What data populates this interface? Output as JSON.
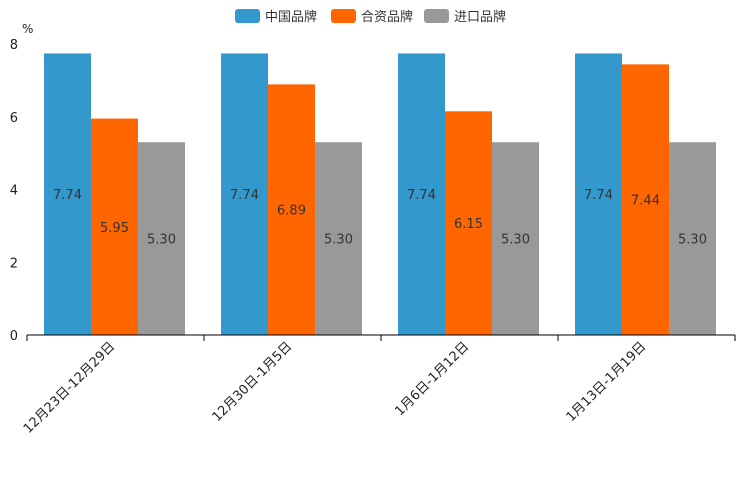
{
  "chart_data": {
    "type": "bar",
    "title": "",
    "ylabel_unit": "%",
    "xlabel": "",
    "ylim": [
      0,
      8
    ],
    "yticks": [
      0,
      2,
      4,
      6,
      8
    ],
    "grid": false,
    "legend_position": "top-center",
    "categories": [
      "12月23日-12月29日",
      "12月30日-1月5日",
      "1月6日-1月12日",
      "1月13日-1月19日"
    ],
    "series": [
      {
        "name": "中国品牌",
        "color": "#3399cc",
        "values": [
          7.74,
          7.74,
          7.74,
          7.74
        ],
        "labels": [
          "7.74",
          "7.74",
          "7.74",
          "7.74"
        ]
      },
      {
        "name": "合资品牌",
        "color": "#ff6600",
        "values": [
          5.95,
          6.89,
          6.15,
          7.44
        ],
        "labels": [
          "5.95",
          "6.89",
          "6.15",
          "7.44"
        ]
      },
      {
        "name": "进口品牌",
        "color": "#999999",
        "values": [
          5.3,
          5.3,
          5.3,
          5.3
        ],
        "labels": [
          "5.30",
          "5.30",
          "5.30",
          "5.30"
        ]
      }
    ]
  }
}
